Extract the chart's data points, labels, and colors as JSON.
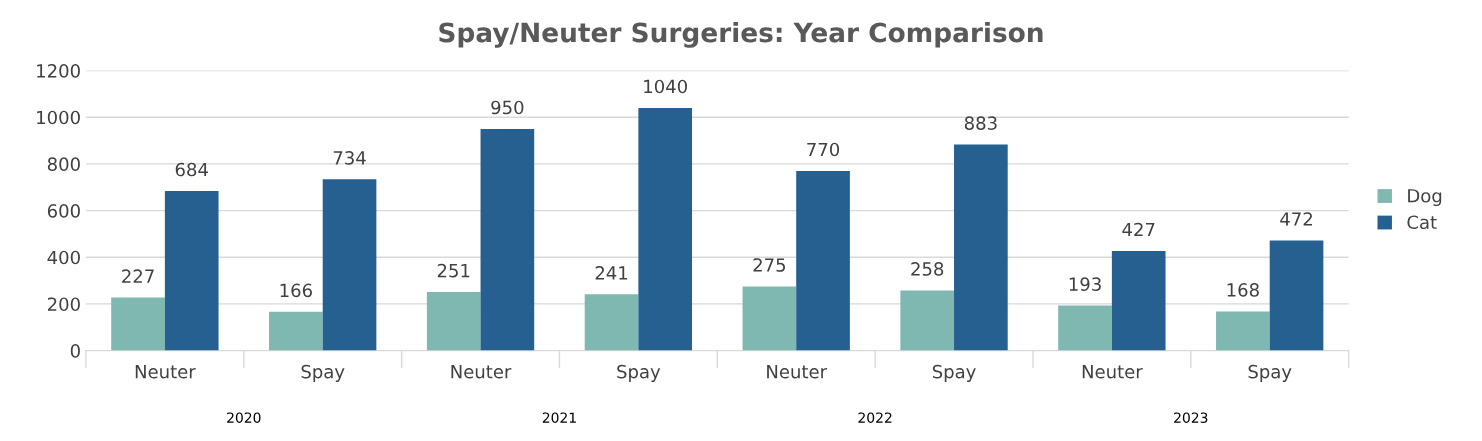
{
  "chart_data": {
    "type": "bar",
    "title": "Spay/Neuter Surgeries: Year Comparison",
    "categories": [
      "Neuter",
      "Spay",
      "Neuter",
      "Spay",
      "Neuter",
      "Spay",
      "Neuter",
      "Spay"
    ],
    "series": [
      {
        "name": "Dog",
        "color": "#7fb8b0",
        "values": [
          227,
          166,
          251,
          241,
          275,
          258,
          193,
          168
        ]
      },
      {
        "name": "Cat",
        "color": "#256090",
        "values": [
          684,
          734,
          950,
          1040,
          770,
          883,
          427,
          472
        ]
      }
    ],
    "annotations": [
      "2020",
      "2021",
      "2022",
      "2023"
    ],
    "ylim": [
      0,
      1200
    ],
    "yticks": [
      0,
      200,
      400,
      600,
      800,
      1000,
      1200
    ],
    "grid": "y",
    "legend": "right",
    "data_labels": true
  }
}
